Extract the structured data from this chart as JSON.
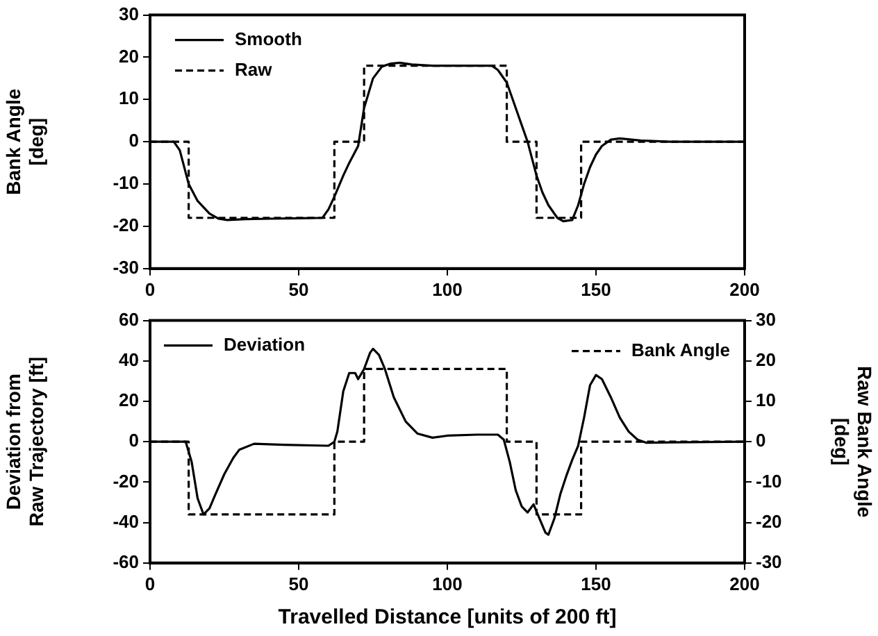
{
  "chart_data": [
    {
      "type": "line",
      "ylabel": "Bank Angle\n[deg]",
      "xlim": [
        0,
        200
      ],
      "xticks": [
        0,
        50,
        100,
        150,
        200
      ],
      "ylim": [
        -30,
        30
      ],
      "yticks": [
        -30,
        -20,
        -10,
        0,
        10,
        20,
        30
      ],
      "grid": false,
      "legend": "top left",
      "series": [
        {
          "name": "Smooth",
          "color": "#000000",
          "line_style": "solid",
          "x": [
            0,
            8,
            10,
            13,
            16,
            20,
            23,
            26,
            32,
            40,
            50,
            58,
            60,
            62,
            65,
            67,
            70,
            72,
            75,
            78,
            81,
            84,
            88,
            95,
            105,
            115,
            117,
            120,
            123,
            125,
            127,
            130,
            132,
            134,
            137,
            139,
            142,
            144,
            146,
            148,
            150,
            152,
            155,
            158,
            165,
            175,
            200
          ],
          "values": [
            0,
            0,
            -2,
            -10,
            -14,
            -17,
            -18.2,
            -18.5,
            -18.3,
            -18.2,
            -18.1,
            -18,
            -16,
            -13,
            -8,
            -5,
            -1,
            8,
            15,
            17.8,
            18.5,
            18.7,
            18.3,
            18,
            18,
            18,
            17,
            14,
            8,
            4,
            0,
            -8,
            -12,
            -15,
            -18,
            -18.8,
            -18.5,
            -15,
            -10,
            -6,
            -3,
            -1,
            0.5,
            0.8,
            0.3,
            0,
            0
          ]
        },
        {
          "name": "Raw",
          "type": "step",
          "color": "#000000",
          "line_style": "dashed",
          "x": [
            0,
            13,
            62,
            72,
            120,
            130,
            145,
            200
          ],
          "values": [
            0,
            -18,
            0,
            18,
            0,
            -18,
            0,
            0
          ]
        }
      ]
    },
    {
      "type": "line",
      "xlabel": "Travelled Distance [units of 200 ft]",
      "ylabel": "Deviation from\nRaw Trajectory [ft]",
      "y2label": "Raw Bank Angle\n[deg]",
      "xlim": [
        0,
        200
      ],
      "xticks": [
        0,
        50,
        100,
        150,
        200
      ],
      "ylim": [
        -60,
        60
      ],
      "yticks": [
        -60,
        -40,
        -20,
        0,
        20,
        40,
        60
      ],
      "y2lim": [
        -30,
        30
      ],
      "y2ticks": [
        -30,
        -20,
        -10,
        0,
        10,
        20,
        30
      ],
      "grid": false,
      "legend": "top",
      "series": [
        {
          "name": "Deviation",
          "color": "#000000",
          "line_style": "solid",
          "x": [
            0,
            12,
            14,
            16,
            18,
            20,
            22,
            25,
            28,
            30,
            35,
            45,
            60,
            62,
            63,
            65,
            67,
            69,
            70,
            72,
            74,
            75,
            77,
            79,
            82,
            86,
            90,
            95,
            100,
            110,
            117,
            119,
            121,
            123,
            125,
            127,
            128,
            129,
            131,
            133,
            134,
            136,
            138,
            140,
            142,
            144,
            146,
            148,
            150,
            152,
            155,
            158,
            161,
            164,
            167,
            175,
            200
          ],
          "values": [
            0,
            0,
            -10,
            -28,
            -36,
            -33,
            -26,
            -16,
            -8,
            -4,
            -1,
            -1.5,
            -2,
            0,
            5,
            25,
            34,
            34,
            31,
            36,
            44,
            46,
            43,
            36,
            22,
            10,
            4,
            2,
            3,
            3.5,
            3.5,
            1,
            -10,
            -24,
            -32,
            -35,
            -33,
            -31,
            -38,
            -45,
            -46,
            -38,
            -26,
            -17,
            -9,
            -2,
            12,
            28,
            33,
            31,
            22,
            12,
            5,
            1,
            -0.5,
            -0.3,
            0
          ]
        },
        {
          "name": "Bank Angle",
          "type": "step",
          "axis": "y2",
          "color": "#000000",
          "line_style": "dashed",
          "x": [
            0,
            13,
            62,
            72,
            120,
            130,
            145,
            200
          ],
          "values": [
            0,
            -18,
            0,
            18,
            0,
            -18,
            0,
            0
          ]
        }
      ]
    }
  ]
}
